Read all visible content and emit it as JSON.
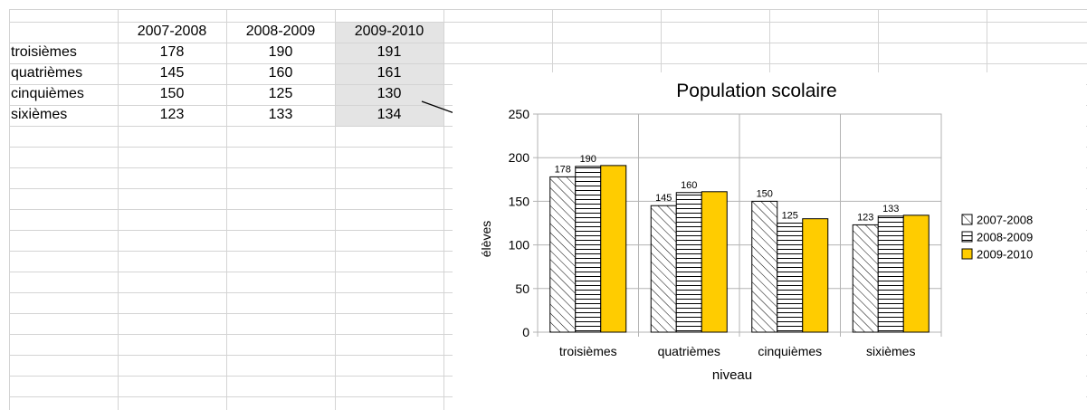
{
  "sheet": {
    "headers": [
      "2007-2008",
      "2008-2009",
      "2009-2010"
    ],
    "rows": [
      {
        "label": "troisièmes",
        "values": [
          "178",
          "190",
          "191"
        ]
      },
      {
        "label": "quatrièmes",
        "values": [
          "145",
          "160",
          "161"
        ]
      },
      {
        "label": "cinquièmes",
        "values": [
          "150",
          "125",
          "130"
        ]
      },
      {
        "label": "sixièmes",
        "values": [
          "123",
          "133",
          "134"
        ]
      }
    ],
    "selected_column_color": "#e4e4e4"
  },
  "chart_data": {
    "type": "bar",
    "title": "Population scolaire",
    "xlabel": "niveau",
    "ylabel": "élèves",
    "categories": [
      "troisièmes",
      "quatrièmes",
      "cinquièmes",
      "sixièmes"
    ],
    "ylim": [
      0,
      250
    ],
    "yticks": [
      0,
      50,
      100,
      150,
      200,
      250
    ],
    "grid": true,
    "legend": "right",
    "series": [
      {
        "name": "2007-2008",
        "values": [
          178,
          145,
          150,
          123
        ],
        "fill": "diagonal-hatch",
        "labels_shown": true
      },
      {
        "name": "2008-2009",
        "values": [
          190,
          160,
          125,
          133
        ],
        "fill": "horizontal-hatch",
        "labels_shown": true
      },
      {
        "name": "2009-2010",
        "values": [
          191,
          161,
          130,
          134
        ],
        "fill": "#ffcc00",
        "labels_shown": false
      }
    ]
  }
}
